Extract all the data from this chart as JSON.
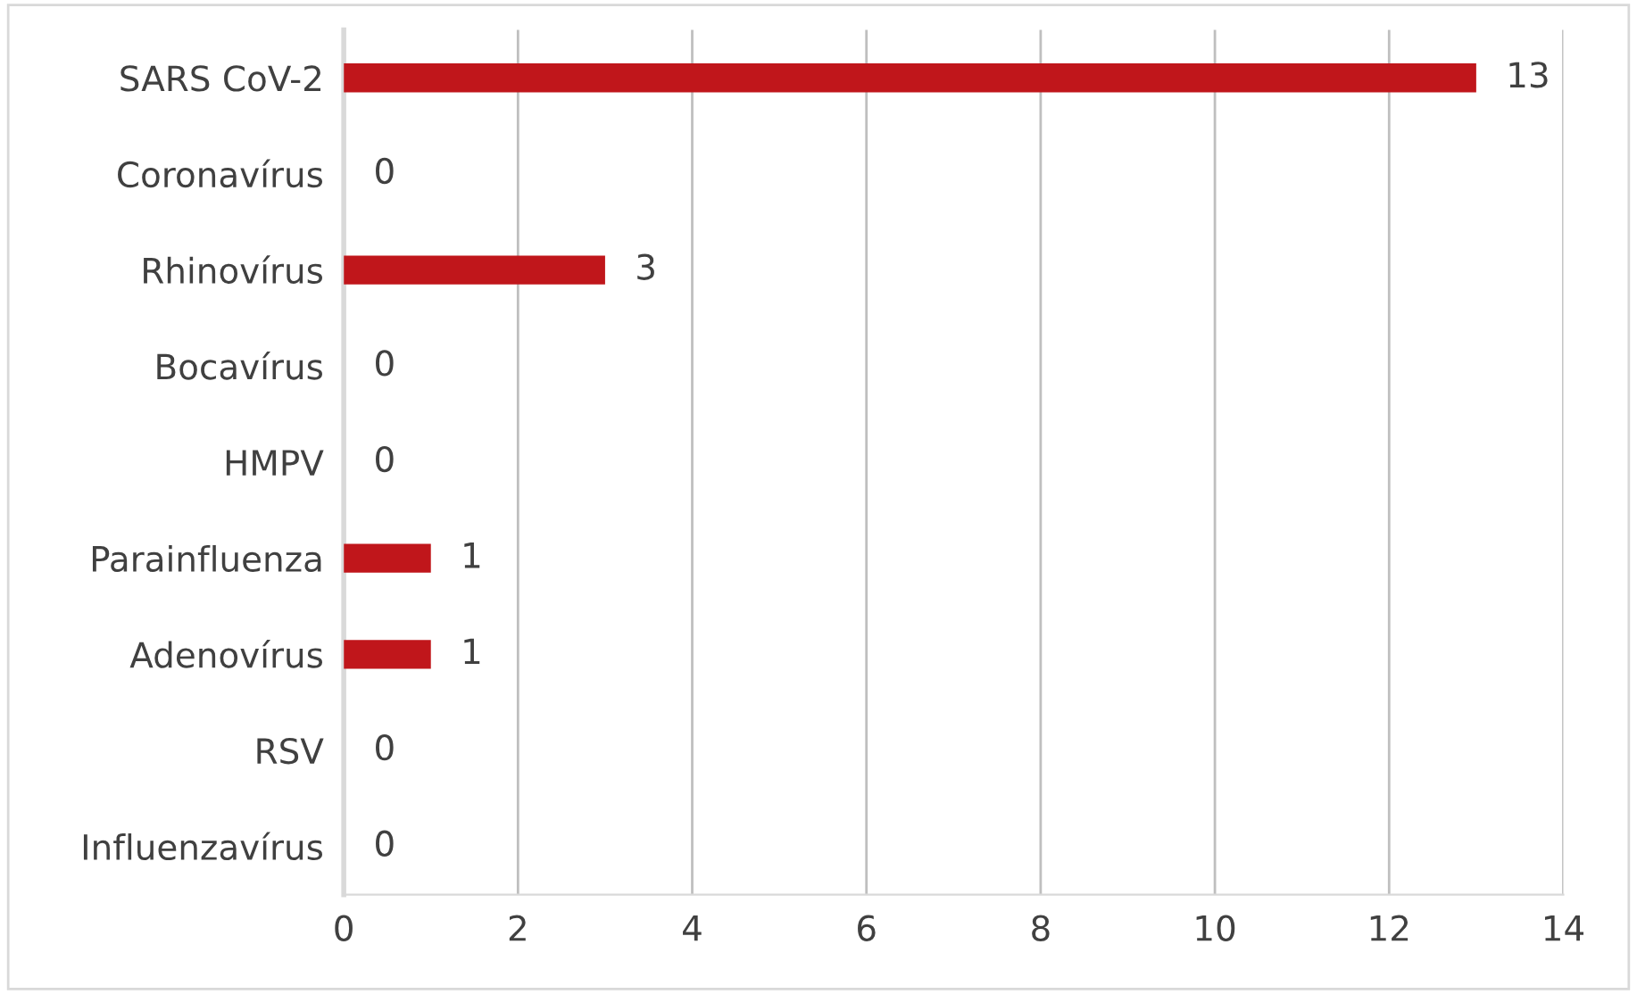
{
  "chart_data": {
    "type": "bar",
    "orientation": "horizontal",
    "categories": [
      "SARS CoV-2",
      "Coronavírus",
      "Rhinovírus",
      "Bocavírus",
      "HMPV",
      "Parainfluenza",
      "Adenovírus",
      "RSV",
      "Influenzavírus"
    ],
    "values": [
      13,
      0,
      3,
      0,
      0,
      1,
      1,
      0,
      0
    ],
    "color": "#c0161b",
    "xlim": [
      0,
      14
    ],
    "xticks": [
      0,
      2,
      4,
      6,
      8,
      10,
      12,
      14
    ],
    "grid": "x",
    "data_labels": true
  }
}
